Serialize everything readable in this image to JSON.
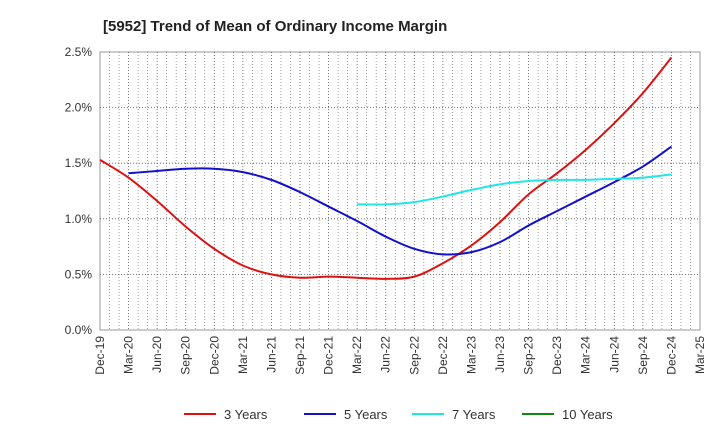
{
  "chart_data": {
    "type": "line",
    "title": "[5952]  Trend of Mean of Ordinary Income Margin",
    "xlabel": "",
    "ylabel": "",
    "categories": [
      "Dec-19",
      "Mar-20",
      "Jun-20",
      "Sep-20",
      "Dec-20",
      "Mar-21",
      "Jun-21",
      "Sep-21",
      "Dec-21",
      "Mar-22",
      "Jun-22",
      "Sep-22",
      "Dec-22",
      "Mar-23",
      "Jun-23",
      "Sep-23",
      "Dec-23",
      "Mar-24",
      "Jun-24",
      "Sep-24",
      "Dec-24",
      "Mar-25"
    ],
    "y_tick_labels": [
      "0.0%",
      "0.5%",
      "1.0%",
      "1.5%",
      "2.0%",
      "2.5%"
    ],
    "ylim": [
      0,
      2.5
    ],
    "grid": true,
    "legend_position": "bottom",
    "series": [
      {
        "name": "3 Years",
        "color": "#dd1111",
        "values": [
          1.53,
          1.37,
          1.16,
          0.93,
          0.73,
          0.58,
          0.5,
          0.47,
          0.48,
          0.47,
          0.46,
          0.48,
          0.6,
          0.76,
          0.97,
          1.22,
          1.41,
          1.62,
          1.86,
          2.13,
          2.45,
          null
        ]
      },
      {
        "name": "5 Years",
        "color": "#1111cc",
        "values": [
          null,
          1.41,
          1.43,
          1.45,
          1.45,
          1.42,
          1.35,
          1.24,
          1.11,
          0.98,
          0.84,
          0.73,
          0.68,
          0.7,
          0.79,
          0.94,
          1.07,
          1.2,
          1.33,
          1.47,
          1.65,
          null
        ]
      },
      {
        "name": "7 Years",
        "color": "#22e5e5",
        "values": [
          null,
          null,
          null,
          null,
          null,
          null,
          null,
          null,
          null,
          1.13,
          1.13,
          1.15,
          1.2,
          1.26,
          1.31,
          1.34,
          1.35,
          1.35,
          1.36,
          1.37,
          1.4,
          null
        ]
      },
      {
        "name": "10 Years",
        "color": "#118811",
        "values": [
          null,
          null,
          null,
          null,
          null,
          null,
          null,
          null,
          null,
          null,
          null,
          null,
          null,
          null,
          null,
          null,
          null,
          null,
          null,
          null,
          null,
          null
        ]
      }
    ]
  }
}
